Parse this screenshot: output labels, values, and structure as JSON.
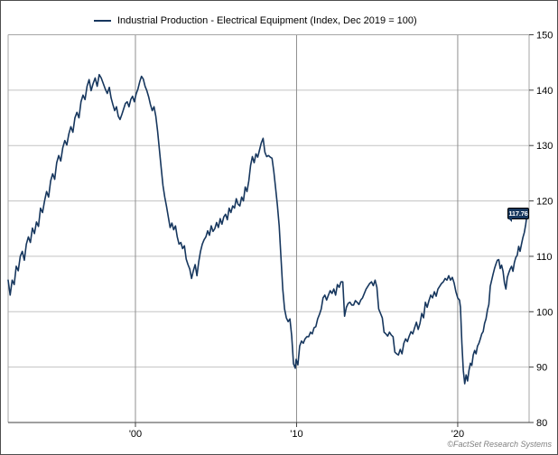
{
  "legend": {
    "label": "Industrial Production - Electrical Equipment (Index, Dec 2019 = 100)"
  },
  "credit": "©FactSet Research Systems",
  "colors": {
    "line": "#17375e",
    "badge_bg": "#17375e",
    "badge_text": "#ffffff",
    "grid_horizontal": "#c3c3c3",
    "grid_vertical": "#8f8f8f",
    "frame": "#a6a6a6",
    "axis": "#404040",
    "tick_text": "#000000",
    "border": "#4d4d4d",
    "credit_text": "#7f7f7f"
  },
  "chart_data": {
    "type": "line",
    "title": "Industrial Production - Electrical Equipment (Index, Dec 2019 = 100)",
    "xlabel": "",
    "ylabel": "",
    "grid": true,
    "legend_position": "top",
    "y_axis": {
      "side": "right",
      "range": [
        80,
        150
      ],
      "ticks": [
        80,
        90,
        100,
        110,
        120,
        130,
        140,
        150
      ]
    },
    "x_axis": {
      "range": [
        1992.1,
        2024.43
      ],
      "ticks": [
        {
          "year": 2000,
          "label": "'00"
        },
        {
          "year": 2010,
          "label": "'10"
        },
        {
          "year": 2020,
          "label": "'20"
        }
      ]
    },
    "last_value": 117.76,
    "last_value_label": "117.76",
    "series": [
      {
        "name": "Industrial Production - Electrical Equipment",
        "color": "#17375e",
        "segments": [
          {
            "x_start": 1992.1,
            "x_end": 1998.38,
            "values": [
              105.7,
              103.0,
              105.7,
              104.9,
              108.2,
              107.4,
              110.0,
              110.9,
              109.3,
              112.2,
              113.5,
              112.5,
              115.1,
              114.1,
              116.2,
              115.4,
              118.7,
              117.9,
              120.0,
              121.7,
              120.7,
              123.6,
              124.9,
              123.9,
              126.9,
              128.2,
              127.2,
              129.6,
              130.9,
              130.1,
              132.1,
              133.4,
              132.4,
              135.0,
              136.0,
              135.0,
              137.9,
              139.1,
              138.3,
              140.7,
              141.9,
              139.9,
              141.2,
              142.2,
              140.7,
              142.8,
              142.2,
              141.2,
              140.2,
              139.4,
              140.5
            ]
          },
          {
            "x_start": 1998.49,
            "x_end": 2009.92,
            "values": [
              138.6,
              137.4,
              136.3,
              137.0,
              135.3,
              134.7,
              135.6,
              136.6,
              137.6,
              137.9,
              137.0,
              138.3,
              138.9,
              137.9,
              139.3,
              140.2,
              141.5,
              142.5,
              142.0,
              140.7,
              139.9,
              138.8,
              137.4,
              136.3,
              137.0,
              135.3,
              132.6,
              129.3,
              126.0,
              122.8,
              120.7,
              119.0,
              117.1,
              115.2,
              116.0,
              114.8,
              115.5,
              113.5,
              112.2,
              112.5,
              111.4,
              111.9,
              109.5,
              108.5,
              107.7,
              106.0,
              107.4,
              108.5,
              106.5,
              109.0,
              110.9,
              112.2,
              113.0,
              113.5,
              114.6,
              113.8,
              115.5,
              114.5,
              115.0,
              116.1,
              115.2,
              116.8,
              115.8,
              117.1,
              117.6,
              116.6,
              118.7,
              117.9,
              119.1,
              118.7,
              120.4,
              119.4,
              119.1,
              120.7,
              120.0,
              122.5,
              121.7,
              123.6,
              126.4,
              128.0,
              126.9,
              128.5,
              127.9,
              129.2,
              130.5,
              131.3,
              128.8,
              128.0,
              128.2,
              127.9,
              127.7,
              125.3,
              122.3,
              119.2,
              115.5,
              109.8,
              104.1,
              100.5,
              98.9,
              98.2,
              98.7,
              95.6,
              90.6,
              89.8
            ]
          },
          {
            "x_start": 2009.97,
            "x_end": 2020.11,
            "values": [
              91.4,
              90.4,
              93.8,
              94.7,
              94.3,
              95.1,
              95.5,
              95.5,
              96.3,
              96.0,
              97.1,
              97.3,
              98.7,
              99.5,
              100.5,
              102.5,
              103.0,
              102.1,
              103.0,
              103.8,
              103.3,
              104.1,
              103.0,
              104.9,
              104.4,
              105.4,
              105.4,
              99.2,
              100.8,
              101.5,
              101.7,
              101.2,
              101.2,
              102.0,
              101.7,
              101.3,
              102.1,
              102.5,
              103.3,
              104.1,
              104.6,
              105.1,
              105.4,
              104.7,
              105.7,
              104.4,
              100.5,
              99.7,
              98.9,
              96.3,
              96.0,
              95.6,
              96.3,
              95.8,
              95.5,
              92.7,
              92.4,
              92.2,
              93.2,
              92.4,
              94.3,
              95.1,
              94.6,
              95.6,
              96.4,
              96.0,
              97.1,
              98.1,
              96.8,
              97.9,
              99.7,
              98.9,
              101.7,
              100.8,
              102.0,
              103.0,
              102.5,
              103.6,
              102.8,
              104.1,
              104.6,
              105.1,
              105.4,
              106.0,
              105.7,
              106.5,
              105.7,
              106.2,
              105.2,
              103.6,
              102.5,
              102.1
            ]
          },
          {
            "x_start": 2020.17,
            "x_end": 2024.31,
            "values": [
              100.8,
              94.3,
              89.4,
              87.0,
              88.6,
              87.5,
              89.4,
              90.7,
              90.3,
              92.2,
              93.0,
              92.4,
              93.8,
              94.3,
              95.1,
              96.0,
              96.4,
              97.9,
              98.7,
              100.3,
              101.3,
              104.6,
              105.7,
              106.8,
              107.8,
              108.6,
              109.3,
              109.4,
              107.8,
              108.4,
              107.3,
              105.2,
              104.1,
              106.2,
              107.0,
              107.7,
              108.2,
              107.3,
              108.9,
              109.8,
              110.2,
              111.8,
              110.9,
              112.2,
              113.4,
              114.3,
              115.8,
              117.76
            ]
          }
        ]
      }
    ]
  }
}
